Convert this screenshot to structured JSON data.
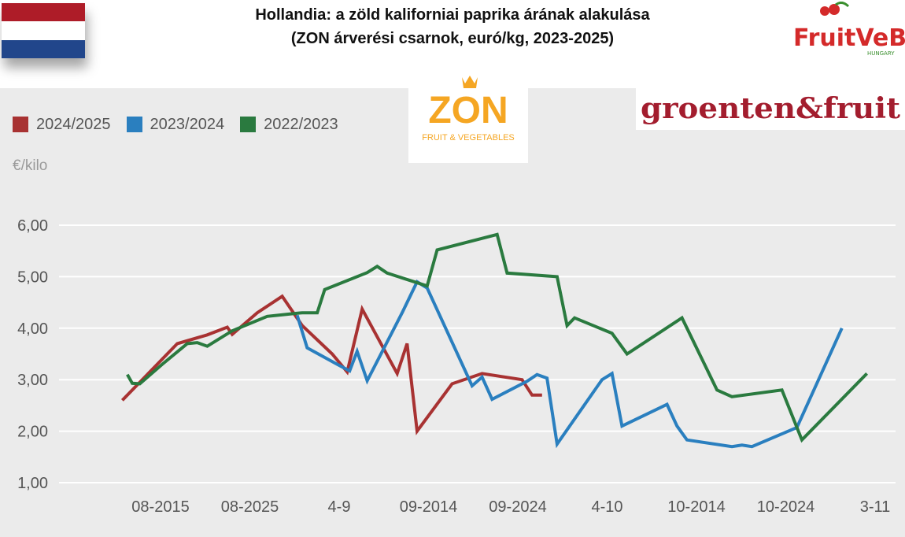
{
  "header": {
    "title_line1": "Hollandia: a zöld kaliforniai paprika árának alakulása",
    "title_line2": "(ZON árverési csarnok, euró/kg, 2023-2025)"
  },
  "logos": {
    "fruitveb_text": "FruitVeB",
    "fruitveb_sub": "HUNGARY",
    "zon_text": "ZON",
    "zon_sub": "FRUIT & VEGETABLES",
    "gf_text": "groenten&fruit"
  },
  "flag": {
    "colors": [
      "#ae1c28",
      "#ffffff",
      "#21468b"
    ]
  },
  "chart_data": {
    "type": "line",
    "ylabel": "€/kilo",
    "ylim": [
      1,
      6
    ],
    "yticks": [
      "1,00",
      "2,00",
      "3,00",
      "4,00",
      "5,00",
      "6,00"
    ],
    "x_tick_labels": [
      "08-2015",
      "08-2025",
      "4-9",
      "09-2014",
      "09-2024",
      "4-10",
      "10-2014",
      "10-2024",
      "3-11"
    ],
    "grid": "horizontal",
    "legend_placement": "top-left",
    "series": [
      {
        "name": "2024/2025",
        "color": "#a83232",
        "points": [
          [
            0.4,
            2.6
          ],
          [
            1.0,
            3.2
          ],
          [
            1.5,
            3.7
          ],
          [
            2.1,
            3.87
          ],
          [
            2.5,
            4.02
          ],
          [
            2.6,
            3.88
          ],
          [
            3.1,
            4.3
          ],
          [
            3.6,
            4.62
          ],
          [
            4.0,
            4.05
          ],
          [
            4.6,
            3.5
          ],
          [
            4.9,
            3.15
          ],
          [
            5.2,
            4.37
          ],
          [
            5.9,
            3.12
          ],
          [
            6.1,
            3.7
          ],
          [
            6.3,
            2.0
          ],
          [
            7.0,
            2.92
          ],
          [
            7.6,
            3.12
          ],
          [
            8.4,
            3.0
          ],
          [
            8.6,
            2.7
          ],
          [
            8.8,
            2.7
          ]
        ]
      },
      {
        "name": "2023/2024",
        "color": "#2a7fbf",
        "points": [
          [
            3.9,
            4.25
          ],
          [
            4.1,
            3.62
          ],
          [
            4.7,
            3.3
          ],
          [
            4.95,
            3.17
          ],
          [
            5.1,
            3.55
          ],
          [
            5.3,
            2.98
          ],
          [
            6.0,
            4.3
          ],
          [
            6.3,
            4.9
          ],
          [
            6.5,
            4.78
          ],
          [
            7.4,
            2.88
          ],
          [
            7.6,
            3.05
          ],
          [
            7.8,
            2.62
          ],
          [
            8.5,
            2.97
          ],
          [
            8.7,
            3.1
          ],
          [
            8.9,
            3.03
          ],
          [
            9.1,
            1.75
          ],
          [
            10.0,
            3.0
          ],
          [
            10.2,
            3.12
          ],
          [
            10.4,
            2.1
          ],
          [
            11.3,
            2.52
          ],
          [
            11.5,
            2.1
          ],
          [
            11.7,
            1.83
          ],
          [
            12.6,
            1.7
          ],
          [
            12.8,
            1.73
          ],
          [
            13.0,
            1.7
          ],
          [
            13.9,
            2.07
          ],
          [
            14.8,
            4.0
          ]
        ]
      },
      {
        "name": "2022/2023",
        "color": "#2a7a3f",
        "points": [
          [
            0.5,
            3.1
          ],
          [
            0.6,
            2.93
          ],
          [
            0.75,
            2.92
          ],
          [
            1.2,
            3.3
          ],
          [
            1.7,
            3.7
          ],
          [
            1.9,
            3.72
          ],
          [
            2.1,
            3.65
          ],
          [
            2.6,
            3.95
          ],
          [
            3.3,
            4.23
          ],
          [
            3.7,
            4.27
          ],
          [
            4.0,
            4.3
          ],
          [
            4.3,
            4.3
          ],
          [
            4.45,
            4.75
          ],
          [
            5.3,
            5.08
          ],
          [
            5.5,
            5.2
          ],
          [
            5.7,
            5.07
          ],
          [
            6.5,
            4.82
          ],
          [
            6.7,
            5.52
          ],
          [
            7.9,
            5.82
          ],
          [
            8.1,
            5.07
          ],
          [
            9.1,
            5.0
          ],
          [
            9.3,
            4.05
          ],
          [
            9.45,
            4.2
          ],
          [
            10.2,
            3.9
          ],
          [
            10.5,
            3.5
          ],
          [
            11.6,
            4.2
          ],
          [
            12.3,
            2.8
          ],
          [
            12.6,
            2.67
          ],
          [
            13.6,
            2.8
          ],
          [
            14.0,
            1.83
          ],
          [
            15.3,
            3.12
          ]
        ]
      }
    ]
  }
}
